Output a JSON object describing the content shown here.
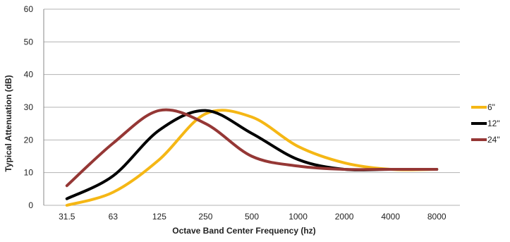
{
  "chart_data": {
    "type": "line",
    "xlabel": "Octave Band Center Frequency (hz)",
    "ylabel": "Typical  Attenuation  (dB)",
    "categories": [
      "31.5",
      "63",
      "125",
      "250",
      "500",
      "1000",
      "2000",
      "4000",
      "8000"
    ],
    "ylim": [
      0,
      60
    ],
    "yticks": [
      0,
      10,
      20,
      30,
      40,
      50,
      60
    ],
    "grid": true,
    "legend_position": "right",
    "series": [
      {
        "name": "6\"",
        "color": "#F5B715",
        "values": [
          0,
          4,
          14,
          28,
          27,
          18,
          13,
          11,
          11
        ]
      },
      {
        "name": "12\"",
        "color": "#000000",
        "values": [
          2,
          9,
          23,
          29,
          22,
          14,
          11,
          11,
          11
        ]
      },
      {
        "name": "24\"",
        "color": "#953735",
        "values": [
          6,
          19,
          29,
          25,
          15,
          12,
          11,
          11,
          11
        ]
      }
    ]
  }
}
